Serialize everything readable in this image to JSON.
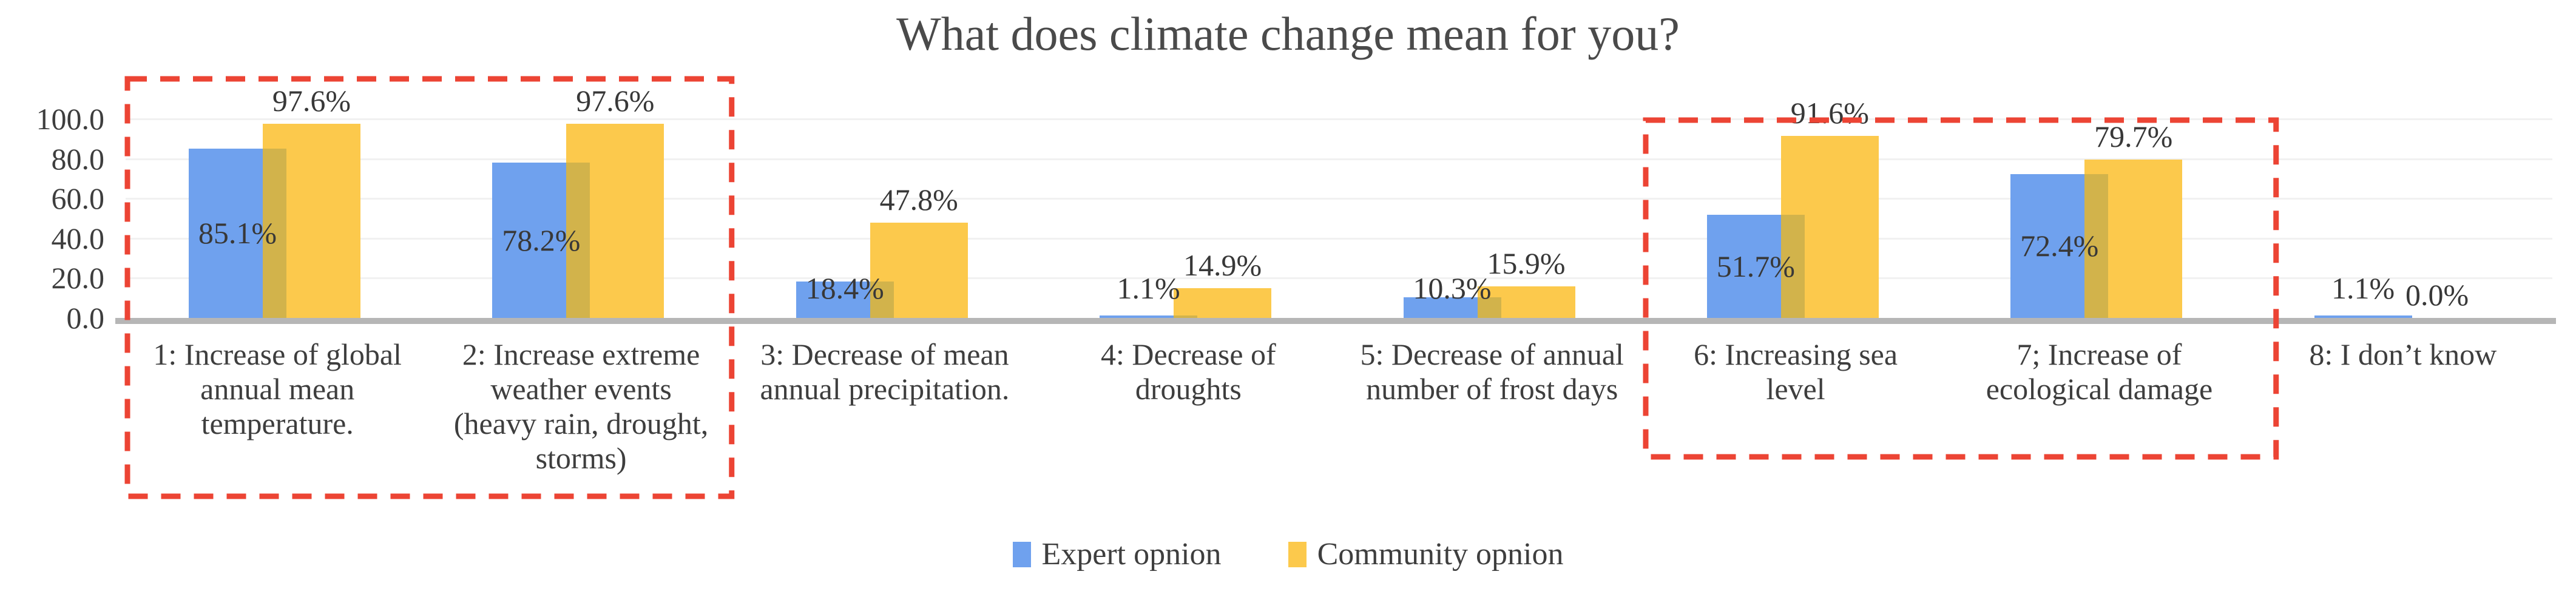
{
  "title": "What does climate change mean for you?",
  "chart_data": {
    "type": "bar",
    "title": "What does climate change mean for you?",
    "categories": [
      {
        "lines": [
          "1: Increase of global",
          "annual mean",
          "temperature."
        ]
      },
      {
        "lines": [
          "2: Increase extreme",
          "weather events",
          "(heavy rain, drought,",
          "storms)"
        ]
      },
      {
        "lines": [
          "3: Decrease of mean",
          "annual precipitation."
        ]
      },
      {
        "lines": [
          "4: Decrease of",
          "droughts"
        ]
      },
      {
        "lines": [
          "5: Decrease of annual",
          "number of frost days"
        ]
      },
      {
        "lines": [
          "6: Increasing sea",
          "level"
        ]
      },
      {
        "lines": [
          "7; Increase of",
          "ecological damage"
        ]
      },
      {
        "lines": [
          "8: I don’t know"
        ]
      }
    ],
    "series": [
      {
        "name": "Expert opnion",
        "color": "#6fa1ee",
        "values": [
          85.1,
          78.2,
          18.4,
          1.1,
          10.3,
          51.7,
          72.4,
          1.1
        ],
        "labels": [
          "85.1%",
          "78.2%",
          "18.4%",
          "1.1%",
          "10.3%",
          "51.7%",
          "72.4%",
          "1.1%"
        ],
        "label_position": "inside-center"
      },
      {
        "name": "Community opnion",
        "color": "#fcc94c",
        "values": [
          97.6,
          97.6,
          47.8,
          14.9,
          15.9,
          91.6,
          79.7,
          0.0
        ],
        "labels": [
          "97.6%",
          "97.6%",
          "47.8%",
          "14.9%",
          "15.9%",
          "91.6%",
          "79.7%",
          "0.0%"
        ],
        "label_position": "outside-end"
      }
    ],
    "overlap_color": "#d2b34b",
    "y_axis": {
      "tick_labels": [
        "100.0",
        "80.0",
        "60.0",
        "40.0",
        "20.0",
        "0.0"
      ],
      "min": 0,
      "max": 100,
      "gridlines": true
    },
    "legend": {
      "position": "bottom-center"
    },
    "highlights": [
      {
        "categories": [
          0,
          1
        ],
        "color": "#ec4434",
        "style": "dashed"
      },
      {
        "categories": [
          5,
          6
        ],
        "color": "#ec4434",
        "style": "dashed"
      }
    ]
  }
}
